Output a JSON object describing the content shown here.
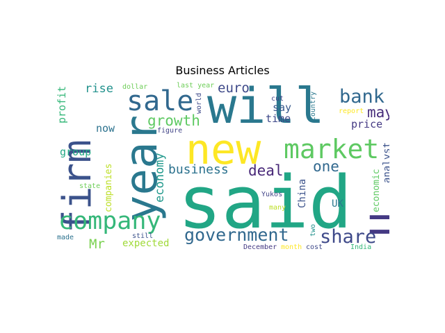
{
  "figure": {
    "title": "Business Articles"
  },
  "wordcloud": {
    "palette": [
      "#440154",
      "#3b528b",
      "#21918c",
      "#35b779",
      "#90d743",
      "#fde725"
    ],
    "words": [
      {
        "id": "said",
        "text": "said",
        "color": "#21a685"
      },
      {
        "id": "will",
        "text": "will",
        "color": "#2a788e"
      },
      {
        "id": "new",
        "text": "new",
        "color": "#fde725"
      },
      {
        "id": "year",
        "text": "year",
        "color": "#2a788e"
      },
      {
        "id": "firm",
        "text": "firm",
        "color": "#3b528b"
      },
      {
        "id": "market",
        "text": "market",
        "color": "#5ec962"
      },
      {
        "id": "company",
        "text": "company",
        "color": "#35b779"
      },
      {
        "id": "sale",
        "text": "sale",
        "color": "#31688e"
      },
      {
        "id": "U",
        "text": "U",
        "color": "#443983"
      },
      {
        "id": "government",
        "text": "government",
        "color": "#31688e"
      },
      {
        "id": "share",
        "text": "share",
        "color": "#3e4989"
      },
      {
        "id": "bank",
        "text": "bank",
        "color": "#31688e"
      },
      {
        "id": "growth",
        "text": "growth",
        "color": "#5ec962"
      },
      {
        "id": "may",
        "text": "may",
        "color": "#472d7b"
      },
      {
        "id": "one",
        "text": "one",
        "color": "#31688e"
      },
      {
        "id": "deal",
        "text": "deal",
        "color": "#482878"
      },
      {
        "id": "business",
        "text": "business",
        "color": "#2c728e"
      },
      {
        "id": "euro",
        "text": "euro",
        "color": "#3e4989"
      },
      {
        "id": "economy",
        "text": "economy",
        "color": "#1f988b"
      },
      {
        "id": "Mr",
        "text": "Mr",
        "color": "#7ad151"
      },
      {
        "id": "rise",
        "text": "rise",
        "color": "#21918c"
      },
      {
        "id": "profit",
        "text": "profit",
        "color": "#35b779"
      },
      {
        "id": "now",
        "text": "now",
        "color": "#2c728e"
      },
      {
        "id": "group",
        "text": "group",
        "color": "#22a884"
      },
      {
        "id": "time",
        "text": "time",
        "color": "#3e4989"
      },
      {
        "id": "say",
        "text": "say",
        "color": "#38598c"
      },
      {
        "id": "price",
        "text": "price",
        "color": "#443983"
      },
      {
        "id": "analyst",
        "text": "analyst",
        "color": "#3b528b"
      },
      {
        "id": "economic",
        "text": "economic",
        "color": "#5ec962"
      },
      {
        "id": "China",
        "text": "China",
        "color": "#3b528b"
      },
      {
        "id": "UK",
        "text": "UK",
        "color": "#2a788e"
      },
      {
        "id": "expected",
        "text": "expected",
        "color": "#a0da39"
      },
      {
        "id": "companies",
        "text": "companies",
        "color": "#bddf26"
      },
      {
        "id": "dollar",
        "text": "dollar",
        "color": "#6ece58"
      },
      {
        "id": "last year",
        "text": "last year",
        "color": "#6ece58"
      },
      {
        "id": "world",
        "text": "world",
        "color": "#3e4989"
      },
      {
        "id": "cut",
        "text": "cut",
        "color": "#414487"
      },
      {
        "id": "country",
        "text": "country",
        "color": "#2a788e"
      },
      {
        "id": "report",
        "text": "report",
        "color": "#fde725"
      },
      {
        "id": "figure",
        "text": "figure",
        "color": "#414487"
      },
      {
        "id": "state",
        "text": "state",
        "color": "#6ece58"
      },
      {
        "id": "Yukos",
        "text": "Yukos",
        "color": "#414487"
      },
      {
        "id": "many",
        "text": "many",
        "color": "#bddf26"
      },
      {
        "id": "two",
        "text": "two",
        "color": "#21918c"
      },
      {
        "id": "December",
        "text": "December",
        "color": "#443983"
      },
      {
        "id": "month",
        "text": "month",
        "color": "#fde725"
      },
      {
        "id": "cost",
        "text": "cost",
        "color": "#3e4989"
      },
      {
        "id": "India",
        "text": "India",
        "color": "#35b779"
      },
      {
        "id": "still",
        "text": "still",
        "color": "#3b528b"
      },
      {
        "id": "made",
        "text": "made",
        "color": "#2c728e"
      }
    ]
  }
}
